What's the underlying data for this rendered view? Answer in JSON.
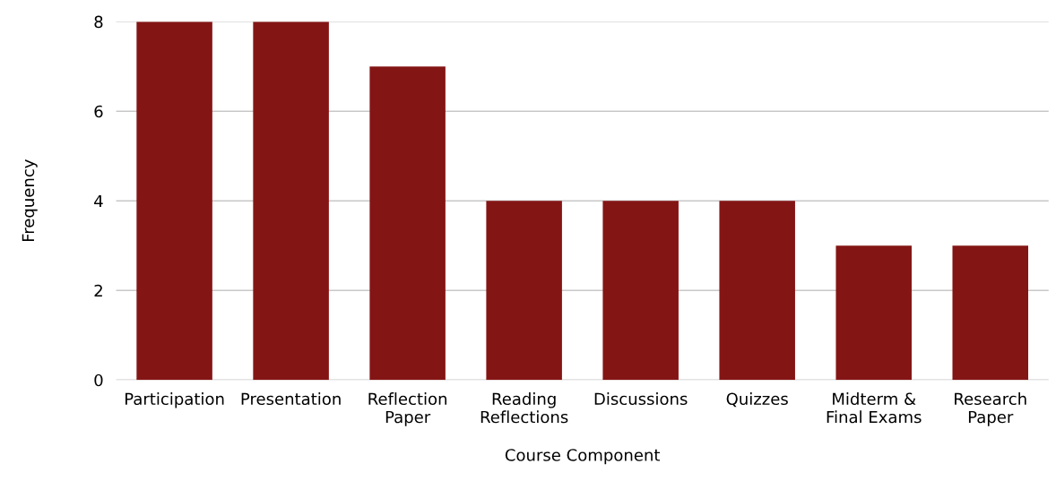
{
  "chart_data": {
    "type": "bar",
    "xlabel": "Course Component",
    "ylabel": "Frequency",
    "categories": [
      "Participation",
      "Presentation",
      "Reflection\nPaper",
      "Reading\nReflections",
      "Discussions",
      "Quizzes",
      "Midterm &\nFinal Exams",
      "Research\nPaper"
    ],
    "values": [
      8,
      8,
      7,
      4,
      4,
      4,
      3,
      3
    ],
    "color": "#841515",
    "ylim": [
      0,
      8
    ],
    "yticks": [
      0,
      2,
      4,
      6,
      8
    ],
    "grid": "y"
  }
}
